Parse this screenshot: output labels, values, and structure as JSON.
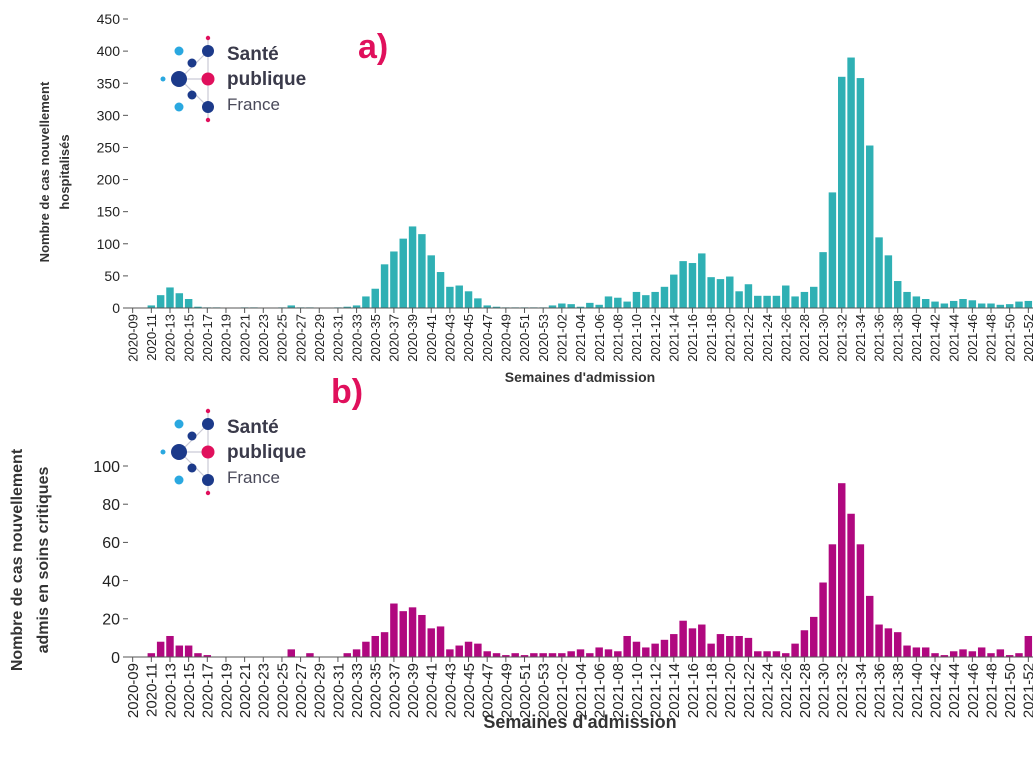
{
  "logo": {
    "line1": "Santé",
    "line2": "publique",
    "line3": "France",
    "icon": "sante-publique-france-logo-icon"
  },
  "colors": {
    "panel_a_bars": "#2fb0b4",
    "panel_b_bars": "#b0087f",
    "panel_tag": "#e0105c",
    "axis": "#555555"
  },
  "chart_data": [
    {
      "type": "bar",
      "panel_tag": "a)",
      "ylabel_line1": "Nombre de cas nouvellement",
      "ylabel_line2": "hospitalisés",
      "xlabel": "Semaines d'admission",
      "ylim": [
        0,
        450
      ],
      "yticks": [
        0,
        50,
        100,
        150,
        200,
        250,
        300,
        350,
        400,
        450
      ],
      "grid": false,
      "categories": [
        "2020-09",
        "2020-10",
        "2020-11",
        "2020-12",
        "2020-13",
        "2020-14",
        "2020-15",
        "2020-16",
        "2020-17",
        "2020-18",
        "2020-19",
        "2020-20",
        "2020-21",
        "2020-22",
        "2020-23",
        "2020-24",
        "2020-25",
        "2020-26",
        "2020-27",
        "2020-28",
        "2020-29",
        "2020-30",
        "2020-31",
        "2020-32",
        "2020-33",
        "2020-34",
        "2020-35",
        "2020-36",
        "2020-37",
        "2020-38",
        "2020-39",
        "2020-40",
        "2020-41",
        "2020-42",
        "2020-43",
        "2020-44",
        "2020-45",
        "2020-46",
        "2020-47",
        "2020-48",
        "2020-49",
        "2020-50",
        "2020-51",
        "2020-52",
        "2020-53",
        "2021-01",
        "2021-02",
        "2021-03",
        "2021-04",
        "2021-05",
        "2021-06",
        "2021-07",
        "2021-08",
        "2021-09",
        "2021-10",
        "2021-11",
        "2021-12",
        "2021-13",
        "2021-14",
        "2021-15",
        "2021-16",
        "2021-17",
        "2021-18",
        "2021-19",
        "2021-20",
        "2021-21",
        "2021-22",
        "2021-23",
        "2021-24",
        "2021-25",
        "2021-26",
        "2021-27",
        "2021-28",
        "2021-29",
        "2021-30",
        "2021-31",
        "2021-32",
        "2021-33",
        "2021-34",
        "2021-35",
        "2021-36",
        "2021-37",
        "2021-38",
        "2021-39",
        "2021-40",
        "2021-41",
        "2021-42",
        "2021-43",
        "2021-44",
        "2021-45",
        "2021-46",
        "2021-47",
        "2021-48",
        "2021-49",
        "2021-50",
        "2021-51",
        "2021-52"
      ],
      "tick_labels": [
        "2020-09",
        "2020-11",
        "2020-13",
        "2020-15",
        "2020-17",
        "2020-19",
        "2020-21",
        "2020-23",
        "2020-25",
        "2020-27",
        "2020-29",
        "2020-31",
        "2020-33",
        "2020-35",
        "2020-37",
        "2020-39",
        "2020-41",
        "2020-43",
        "2020-45",
        "2020-47",
        "2020-49",
        "2020-51",
        "2020-53",
        "2021-02",
        "2021-04",
        "2021-06",
        "2021-08",
        "2021-10",
        "2021-12",
        "2021-14",
        "2021-16",
        "2021-18",
        "2021-20",
        "2021-22",
        "2021-24",
        "2021-26",
        "2021-28",
        "2021-30",
        "2021-32",
        "2021-34",
        "2021-36",
        "2021-38",
        "2021-40",
        "2021-42",
        "2021-44",
        "2021-46",
        "2021-48",
        "2021-50",
        "2021-52"
      ],
      "values": [
        0,
        0,
        4,
        20,
        32,
        23,
        14,
        2,
        1,
        1,
        0,
        0,
        1,
        1,
        0,
        0,
        1,
        4,
        1,
        1,
        0,
        0,
        1,
        2,
        4,
        18,
        30,
        68,
        88,
        108,
        127,
        115,
        82,
        56,
        33,
        35,
        26,
        15,
        4,
        2,
        1,
        1,
        1,
        1,
        1,
        4,
        7,
        6,
        2,
        8,
        5,
        18,
        16,
        10,
        25,
        20,
        25,
        33,
        52,
        73,
        70,
        85,
        48,
        45,
        49,
        26,
        37,
        19,
        19,
        19,
        35,
        18,
        25,
        33,
        87,
        180,
        360,
        390,
        358,
        253,
        110,
        82,
        42,
        25,
        18,
        14,
        10,
        7,
        11,
        14,
        12,
        7,
        7,
        5,
        6,
        10,
        11
      ]
    },
    {
      "type": "bar",
      "panel_tag": "b)",
      "ylabel_line1": "Nombre de cas nouvellement",
      "ylabel_line2": "admis en soins critiques",
      "xlabel": "Semaines d'admission",
      "ylim": [
        0,
        100
      ],
      "yticks": [
        0,
        20,
        40,
        60,
        80,
        100
      ],
      "grid": false,
      "categories": [
        "2020-09",
        "2020-10",
        "2020-11",
        "2020-12",
        "2020-13",
        "2020-14",
        "2020-15",
        "2020-16",
        "2020-17",
        "2020-18",
        "2020-19",
        "2020-20",
        "2020-21",
        "2020-22",
        "2020-23",
        "2020-24",
        "2020-25",
        "2020-26",
        "2020-27",
        "2020-28",
        "2020-29",
        "2020-30",
        "2020-31",
        "2020-32",
        "2020-33",
        "2020-34",
        "2020-35",
        "2020-36",
        "2020-37",
        "2020-38",
        "2020-39",
        "2020-40",
        "2020-41",
        "2020-42",
        "2020-43",
        "2020-44",
        "2020-45",
        "2020-46",
        "2020-47",
        "2020-48",
        "2020-49",
        "2020-50",
        "2020-51",
        "2020-52",
        "2020-53",
        "2021-01",
        "2021-02",
        "2021-03",
        "2021-04",
        "2021-05",
        "2021-06",
        "2021-07",
        "2021-08",
        "2021-09",
        "2021-10",
        "2021-11",
        "2021-12",
        "2021-13",
        "2021-14",
        "2021-15",
        "2021-16",
        "2021-17",
        "2021-18",
        "2021-19",
        "2021-20",
        "2021-21",
        "2021-22",
        "2021-23",
        "2021-24",
        "2021-25",
        "2021-26",
        "2021-27",
        "2021-28",
        "2021-29",
        "2021-30",
        "2021-31",
        "2021-32",
        "2021-33",
        "2021-34",
        "2021-35",
        "2021-36",
        "2021-37",
        "2021-38",
        "2021-39",
        "2021-40",
        "2021-41",
        "2021-42",
        "2021-43",
        "2021-44",
        "2021-45",
        "2021-46",
        "2021-47",
        "2021-48",
        "2021-49",
        "2021-50",
        "2021-51",
        "2021-52"
      ],
      "tick_labels": [
        "2020-09",
        "2020-11",
        "2020-13",
        "2020-15",
        "2020-17",
        "2020-19",
        "2020-21",
        "2020-23",
        "2020-25",
        "2020-27",
        "2020-29",
        "2020-31",
        "2020-33",
        "2020-35",
        "2020-37",
        "2020-39",
        "2020-41",
        "2020-43",
        "2020-45",
        "2020-47",
        "2020-49",
        "2020-51",
        "2020-53",
        "2021-02",
        "2021-04",
        "2021-06",
        "2021-08",
        "2021-10",
        "2021-12",
        "2021-14",
        "2021-16",
        "2021-18",
        "2021-20",
        "2021-22",
        "2021-24",
        "2021-26",
        "2021-28",
        "2021-30",
        "2021-32",
        "2021-34",
        "2021-36",
        "2021-38",
        "2021-40",
        "2021-42",
        "2021-44",
        "2021-46",
        "2021-48",
        "2021-50",
        "2021-52"
      ],
      "values": [
        0,
        0,
        2,
        8,
        11,
        6,
        6,
        2,
        1,
        0,
        0,
        0,
        0,
        0,
        0,
        0,
        0,
        4,
        0,
        2,
        0,
        0,
        0,
        2,
        4,
        8,
        11,
        13,
        28,
        24,
        26,
        22,
        15,
        16,
        4,
        6,
        8,
        7,
        3,
        2,
        1,
        2,
        1,
        2,
        2,
        2,
        2,
        3,
        4,
        2,
        5,
        4,
        3,
        11,
        8,
        5,
        7,
        9,
        12,
        19,
        15,
        17,
        7,
        12,
        11,
        11,
        10,
        3,
        3,
        3,
        2,
        7,
        14,
        21,
        39,
        59,
        91,
        75,
        59,
        32,
        17,
        15,
        13,
        6,
        5,
        5,
        2,
        1,
        3,
        4,
        3,
        5,
        2,
        4,
        1,
        2,
        11
      ]
    }
  ]
}
